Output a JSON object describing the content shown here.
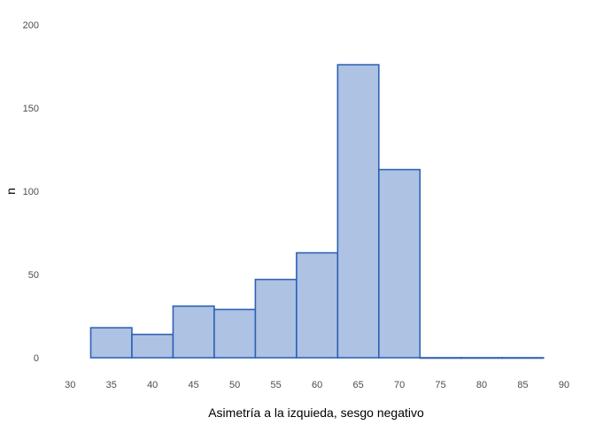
{
  "chart_data": {
    "type": "bar",
    "title": "",
    "xlabel": "Asimetría a la izquieda, sesgo negativo",
    "ylabel": "n",
    "xlim": [
      27.5,
      90
    ],
    "ylim": [
      0,
      200
    ],
    "x_ticks": [
      30,
      35,
      40,
      45,
      50,
      55,
      60,
      65,
      70,
      75,
      80,
      85,
      90
    ],
    "y_ticks": [
      0,
      50,
      100,
      150,
      200
    ],
    "bin_width": 5,
    "bins": [
      {
        "start": 32.5,
        "end": 37.5,
        "count": 18
      },
      {
        "start": 37.5,
        "end": 42.5,
        "count": 14
      },
      {
        "start": 42.5,
        "end": 47.5,
        "count": 31
      },
      {
        "start": 47.5,
        "end": 52.5,
        "count": 29
      },
      {
        "start": 52.5,
        "end": 57.5,
        "count": 47
      },
      {
        "start": 57.5,
        "end": 62.5,
        "count": 63
      },
      {
        "start": 62.5,
        "end": 67.5,
        "count": 176
      },
      {
        "start": 67.5,
        "end": 72.5,
        "count": 113
      },
      {
        "start": 72.5,
        "end": 77.5,
        "count": 0
      },
      {
        "start": 77.5,
        "end": 82.5,
        "count": 0
      },
      {
        "start": 82.5,
        "end": 87.5,
        "count": 0
      }
    ],
    "grid": false,
    "colors": {
      "fill": "#aec2e3",
      "stroke": "#2e62b5"
    }
  }
}
